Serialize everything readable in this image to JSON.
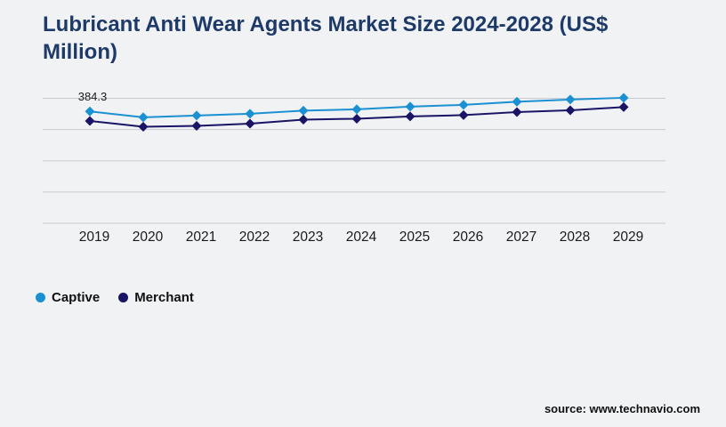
{
  "page": {
    "background": "#F1F2F4"
  },
  "title": {
    "text": "Lubricant Anti Wear Agents Market Size 2024-2028 (US$ Million)",
    "color": "#1E3A68"
  },
  "source": {
    "text": "source: www.technavio.com"
  },
  "legend": {
    "items": [
      {
        "label": "Captive",
        "color": "#1B90D2"
      },
      {
        "label": "Merchant",
        "color": "#1A1464"
      }
    ]
  },
  "chart_data": {
    "type": "line",
    "title": "Lubricant Anti Wear Agents Market Size 2024-2028 (US$ Million)",
    "categories": [
      "2019",
      "2020",
      "2021",
      "2022",
      "2023",
      "2024",
      "2025",
      "2026",
      "2027",
      "2028",
      "2029"
    ],
    "series": [
      {
        "name": "Captive",
        "color": "#1B90D2",
        "marker": "diamond",
        "values": [
          384.3,
          377.2,
          379.3,
          381.5,
          385.2,
          386.8,
          390.0,
          392.1,
          395.8,
          398.5,
          400.6
        ]
      },
      {
        "name": "Merchant",
        "color": "#1A1464",
        "marker": "diamond",
        "values": [
          372.8,
          365.9,
          366.9,
          369.6,
          374.4,
          375.5,
          378.2,
          379.8,
          383.5,
          385.6,
          389.4
        ]
      }
    ],
    "point_label": {
      "series": "Captive",
      "category": "2019",
      "text": "384.3"
    },
    "xlabel": "",
    "ylabel": "",
    "ylim": [
      250,
      400
    ],
    "gridline_count": 5,
    "grid_color": "#C9CBD0",
    "axis_text_color": "#1A1A1A",
    "legend_position": "bottom-left",
    "grid": true,
    "y_axis_labels_visible": false
  }
}
